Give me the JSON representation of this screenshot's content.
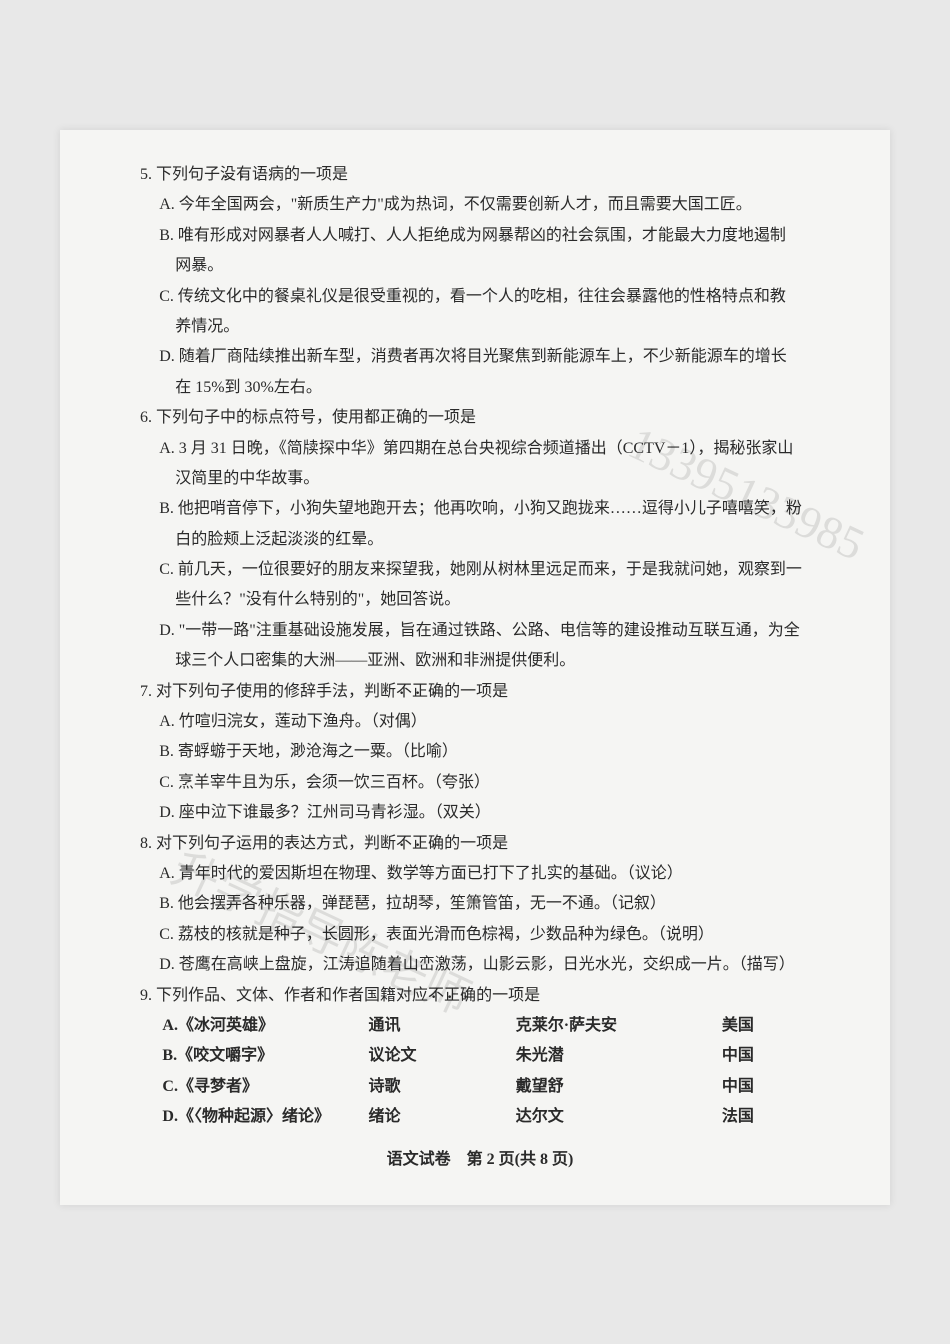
{
  "watermark1": "13395133985",
  "watermark2": "升学指导陈老师",
  "q5": {
    "stem_pre": "5. 下列句子",
    "stem_u1": "没",
    "stem_u2": "有",
    "stem_post": "语病的一项是",
    "A": "A. 今年全国两会，\"新质生产力\"成为热词，不仅需要创新人才，而且需要大国工匠。",
    "B": "B. 唯有形成对网暴者人人喊打、人人拒绝成为网暴帮凶的社会氛围，才能最大力度地遏制",
    "B2": "网暴。",
    "C": "C. 传统文化中的餐桌礼仪是很受重视的，看一个人的吃相，往往会暴露他的性格特点和教",
    "C2": "养情况。",
    "D": "D. 随着厂商陆续推出新车型，消费者再次将目光聚焦到新能源车上，不少新能源车的增长",
    "D2": "在 15%到 30%左右。"
  },
  "q6": {
    "stem": "6. 下列句子中的标点符号，使用都正确的一项是",
    "A": "A. 3 月 31 日晚，《简牍探中华》第四期在总台央视综合频道播出（CCTV－1），揭秘张家山",
    "A2": "汉简里的中华故事。",
    "B": "B. 他把哨音停下，小狗失望地跑开去；他再吹响，小狗又跑拢来……逗得小儿子嘻嘻笑，粉",
    "B2": "白的脸颊上泛起淡淡的红晕。",
    "C": "C. 前几天，一位很要好的朋友来探望我，她刚从树林里远足而来，于是我就问她，观察到一",
    "C2": "些什么？\"没有什么特别的\"，她回答说。",
    "D": "D. \"一带一路\"注重基础设施发展，旨在通过铁路、公路、电信等的建设推动互联互通，为全",
    "D2": "球三个人口密集的大洲——亚洲、欧洲和非洲提供便利。"
  },
  "q7": {
    "stem_pre": "7. 对下列句子使用的修辞手法，判断",
    "stem_u1": "不",
    "stem_u2": "正",
    "stem_u3": "确",
    "stem_post": "的一项是",
    "A": "A. 竹喧归浣女，莲动下渔舟。（对偶）",
    "B": "B. 寄蜉蝣于天地，渺沧海之一粟。（比喻）",
    "C": "C. 烹羊宰牛且为乐，会须一饮三百杯。（夸张）",
    "D": "D. 座中泣下谁最多？江州司马青衫湿。（双关）"
  },
  "q8": {
    "stem_pre": "8. 对下列句子运用的表达方式，判断",
    "stem_u1": "不",
    "stem_u2": "正",
    "stem_u3": "确",
    "stem_post": "的一项是",
    "A": "A. 青年时代的爱因斯坦在物理、数学等方面已打下了扎实的基础。（议论）",
    "B": "B. 他会摆弄各种乐器，弹琵琶，拉胡琴，笙箫管笛，无一不通。（记叙）",
    "C": "C. 荔枝的核就是种子，长圆形，表面光滑而色棕褐，少数品种为绿色。（说明）",
    "D": "D. 苍鹰在高峡上盘旋，江涛追随着山峦激荡，山影云影，日光水光，交织成一片。（描写）"
  },
  "q9": {
    "stem_pre": "9. 下列作品、文体、作者和作者国籍对应",
    "stem_u1": "不",
    "stem_u2": "正",
    "stem_u3": "确",
    "stem_post": "的一项是",
    "rows": [
      {
        "k": "A.《冰河英雄》",
        "t": "通讯",
        "a": "克莱尔·萨夫安",
        "n": "美国"
      },
      {
        "k": "B.《咬文嚼字》",
        "t": "议论文",
        "a": "朱光潜",
        "n": "中国"
      },
      {
        "k": "C.《寻梦者》",
        "t": "诗歌",
        "a": "戴望舒",
        "n": "中国"
      },
      {
        "k": "D.《〈物种起源〉绪论》",
        "t": "绪论",
        "a": "达尔文",
        "n": "法国"
      }
    ]
  },
  "footer": "语文试卷　第 2 页(共 8 页)"
}
